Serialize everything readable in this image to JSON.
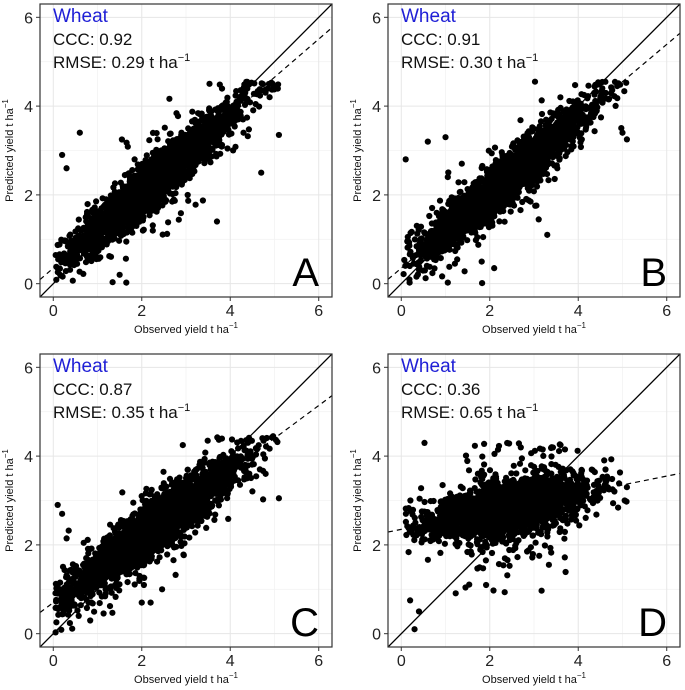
{
  "figure": {
    "crop_label_color": "#1f1fd6",
    "point_color": "#000000",
    "superscript_unit": "−1"
  },
  "chart_data": [
    {
      "type": "scatter",
      "panel_letter": "A",
      "crop": "Wheat",
      "ccc_label": "CCC:",
      "ccc": "0.92",
      "rmse_label": "RMSE:",
      "rmse": "0.29",
      "rmse_unit": "t ha",
      "xlabel": "Observed yield t ha",
      "ylabel": "Predicted yield t ha",
      "xlim": [
        -0.3,
        6.3
      ],
      "ylim": [
        -0.3,
        6.3
      ],
      "xticks": [
        "0",
        "2",
        "4",
        "6"
      ],
      "yticks": [
        "0",
        "2",
        "4",
        "6"
      ],
      "one_to_one": {
        "x": [
          -0.3,
          6.3
        ],
        "y": [
          -0.3,
          6.3
        ]
      },
      "regression": {
        "intercept": 0.35,
        "slope": 0.86
      },
      "points_model": {
        "n": 2400,
        "x_mean": 2.3,
        "x_sd": 0.95,
        "x_min": 0.05,
        "x_max": 5.1,
        "slope": 0.86,
        "intercept": 0.35,
        "noise_sd": 0.26,
        "outlier_rate": 0.05,
        "outlier_sd": 0.65,
        "y_max": 4.55
      },
      "notable_points": [
        {
          "x": 0.2,
          "y": 2.9
        },
        {
          "x": 0.3,
          "y": 2.6
        },
        {
          "x": 1.5,
          "y": 0.2
        },
        {
          "x": 3.7,
          "y": 1.4
        },
        {
          "x": 4.7,
          "y": 2.5
        },
        {
          "x": 5.1,
          "y": 3.35
        },
        {
          "x": 4.3,
          "y": 3.4
        },
        {
          "x": 0.6,
          "y": 3.4
        }
      ]
    },
    {
      "type": "scatter",
      "panel_letter": "B",
      "crop": "Wheat",
      "ccc_label": "CCC:",
      "ccc": "0.91",
      "rmse_label": "RMSE:",
      "rmse": "0.30",
      "rmse_unit": "t ha",
      "xlabel": "Observed yield t ha",
      "ylabel": "Predicted yield t ha",
      "xlim": [
        -0.3,
        6.3
      ],
      "ylim": [
        -0.3,
        6.3
      ],
      "xticks": [
        "0",
        "2",
        "4",
        "6"
      ],
      "yticks": [
        "0",
        "2",
        "4",
        "6"
      ],
      "one_to_one": {
        "x": [
          -0.3,
          6.3
        ],
        "y": [
          -0.3,
          6.3
        ]
      },
      "regression": {
        "intercept": 0.35,
        "slope": 0.84
      },
      "points_model": {
        "n": 2400,
        "x_mean": 2.3,
        "x_sd": 0.95,
        "x_min": 0.05,
        "x_max": 5.1,
        "slope": 0.84,
        "intercept": 0.35,
        "noise_sd": 0.28,
        "outlier_rate": 0.05,
        "outlier_sd": 0.65,
        "y_max": 4.55
      },
      "notable_points": [
        {
          "x": 0.1,
          "y": 2.8
        },
        {
          "x": 0.6,
          "y": 3.2
        },
        {
          "x": 1.0,
          "y": 3.3
        },
        {
          "x": 5.1,
          "y": 3.25
        },
        {
          "x": 5.0,
          "y": 3.4
        },
        {
          "x": 4.5,
          "y": 4.2
        },
        {
          "x": 2.1,
          "y": 0.35
        },
        {
          "x": 3.3,
          "y": 1.1
        }
      ]
    },
    {
      "type": "scatter",
      "panel_letter": "C",
      "crop": "Wheat",
      "ccc_label": "CCC:",
      "ccc": "0.87",
      "rmse_label": "RMSE:",
      "rmse": "0.35",
      "rmse_unit": "t ha",
      "xlabel": "Observed yield t ha",
      "ylabel": "Predicted yield t ha",
      "xlim": [
        -0.3,
        6.3
      ],
      "ylim": [
        -0.3,
        6.3
      ],
      "xticks": [
        "0",
        "2",
        "4",
        "6"
      ],
      "yticks": [
        "0",
        "2",
        "4",
        "6"
      ],
      "one_to_one": {
        "x": [
          -0.3,
          6.3
        ],
        "y": [
          -0.3,
          6.3
        ]
      },
      "regression": {
        "intercept": 0.7,
        "slope": 0.74
      },
      "points_model": {
        "n": 2400,
        "x_mean": 2.3,
        "x_sd": 0.95,
        "x_min": 0.05,
        "x_max": 5.1,
        "slope": 0.74,
        "intercept": 0.7,
        "noise_sd": 0.3,
        "outlier_rate": 0.06,
        "outlier_sd": 0.7,
        "y_max": 4.45
      },
      "notable_points": [
        {
          "x": 0.1,
          "y": 2.9
        },
        {
          "x": 0.2,
          "y": 2.7
        },
        {
          "x": 1.4,
          "y": 1.1
        },
        {
          "x": 2.0,
          "y": 0.7
        },
        {
          "x": 2.2,
          "y": 0.7
        },
        {
          "x": 5.1,
          "y": 3.05
        },
        {
          "x": 4.8,
          "y": 3.6
        },
        {
          "x": 4.4,
          "y": 4.3
        }
      ]
    },
    {
      "type": "scatter",
      "panel_letter": "D",
      "crop": "Wheat",
      "ccc_label": "CCC:",
      "ccc": "0.36",
      "rmse_label": "RMSE:",
      "rmse": "0.65",
      "rmse_unit": "t ha",
      "xlabel": "Observed yield t ha",
      "ylabel": "Predicted yield t ha",
      "xlim": [
        -0.3,
        6.3
      ],
      "ylim": [
        -0.3,
        6.3
      ],
      "xticks": [
        "0",
        "2",
        "4",
        "6"
      ],
      "yticks": [
        "0",
        "2",
        "4",
        "6"
      ],
      "one_to_one": {
        "x": [
          -0.3,
          6.3
        ],
        "y": [
          -0.3,
          6.3
        ]
      },
      "regression": {
        "intercept": 2.35,
        "slope": 0.2
      },
      "points_model": {
        "n": 2400,
        "x_mean": 2.4,
        "x_sd": 0.9,
        "x_min": 0.1,
        "x_max": 5.1,
        "slope": 0.2,
        "intercept": 2.35,
        "noise_sd": 0.28,
        "outlier_rate": 0.09,
        "outlier_sd": 0.8,
        "y_max": 4.3
      },
      "notable_points": [
        {
          "x": 0.3,
          "y": 0.1
        },
        {
          "x": 0.4,
          "y": 0.5
        },
        {
          "x": 0.2,
          "y": 0.75
        },
        {
          "x": 3.4,
          "y": 4.2
        },
        {
          "x": 3.6,
          "y": 4.25
        },
        {
          "x": 3.7,
          "y": 4.15
        },
        {
          "x": 5.05,
          "y": 3.0
        },
        {
          "x": 5.1,
          "y": 3.3
        }
      ]
    }
  ]
}
